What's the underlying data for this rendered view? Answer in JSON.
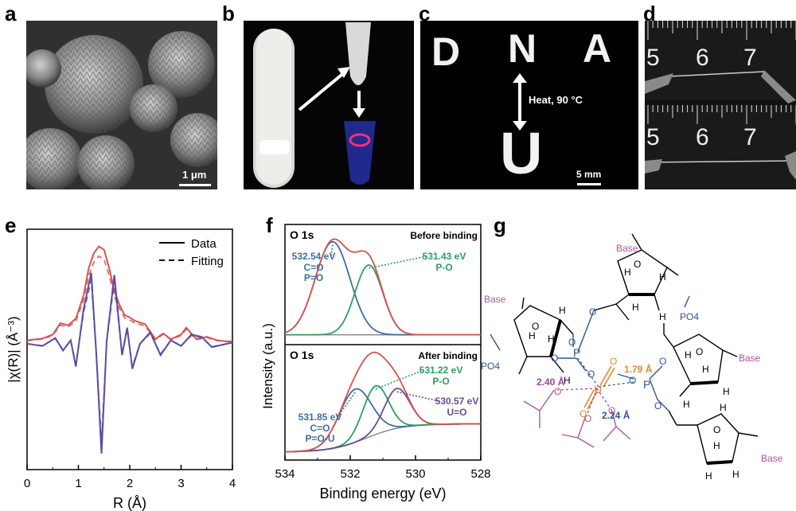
{
  "panels": {
    "a": {
      "label": "a",
      "scalebar": "1 μm"
    },
    "b": {
      "label": "b"
    },
    "c": {
      "label": "c",
      "letters": [
        "D",
        "N",
        "A",
        "U"
      ],
      "heat_label": "Heat, 90 °C",
      "scalebar": "5 mm"
    },
    "d": {
      "label": "d",
      "ruler_numbers": [
        "5",
        "6",
        "7"
      ]
    },
    "e": {
      "label": "e"
    },
    "f": {
      "label": "f"
    },
    "g": {
      "label": "g"
    }
  },
  "chart_data": [
    {
      "type": "line",
      "panel": "e",
      "xlabel": "R (Å)",
      "ylabel": "|χ(R)| (Å⁻³)",
      "xlim": [
        0,
        4
      ],
      "xticks": [
        "0",
        "1",
        "2",
        "3",
        "4"
      ],
      "legend": {
        "placement": "top-right",
        "entries": [
          "Data",
          "Fitting"
        ]
      },
      "series": [
        {
          "name": "Data",
          "kind": "magnitude",
          "color": "#d9534f",
          "x": [
            0,
            0.3,
            0.5,
            0.65,
            0.8,
            0.95,
            1.1,
            1.2,
            1.3,
            1.4,
            1.5,
            1.6,
            1.7,
            1.8,
            1.9,
            2.0,
            2.1,
            2.3,
            2.5,
            2.65,
            2.8,
            3.0,
            3.1,
            3.3,
            3.5,
            3.7,
            3.9,
            4.0
          ],
          "y": [
            0.3,
            0.45,
            0.8,
            1.8,
            1.6,
            2.2,
            4.2,
            6.6,
            7.9,
            8.5,
            8.2,
            6.6,
            4.6,
            3.4,
            2.5,
            2.3,
            2.0,
            1.7,
            0.4,
            0.9,
            0.4,
            0.8,
            1.4,
            0.4,
            0.6,
            0.3,
            0.2,
            0.2
          ]
        },
        {
          "name": "Data",
          "kind": "real",
          "color": "#5b4ea2",
          "x": [
            0,
            0.3,
            0.55,
            0.7,
            0.85,
            0.95,
            1.1,
            1.25,
            1.35,
            1.45,
            1.55,
            1.7,
            1.85,
            1.95,
            2.05,
            2.2,
            2.4,
            2.6,
            2.8,
            3.0,
            3.2,
            3.4,
            3.6,
            4.0
          ],
          "y": [
            0,
            -0.2,
            0.5,
            -0.6,
            0.3,
            -2.0,
            3.0,
            6.2,
            -1.0,
            -9.6,
            0.2,
            6.0,
            -1.0,
            1.4,
            -2.2,
            0.0,
            1.0,
            -1.0,
            0.3,
            -0.2,
            0.8,
            0.6,
            -0.3,
            0.1
          ]
        }
      ],
      "fit_series": {
        "name": "Fitting",
        "style": "dashed"
      }
    },
    {
      "type": "line",
      "panel": "f",
      "xlabel": "Binding energy (eV)",
      "ylabel": "Intensity (a.u.)",
      "xlim": [
        534,
        528
      ],
      "xticks": [
        "534",
        "532",
        "530",
        "528"
      ],
      "subplots": [
        {
          "name": "Before binding",
          "core_level": "O 1s",
          "peaks": [
            {
              "center": 532.54,
              "label": "532.54 eV",
              "assign": [
                "C=O",
                "P=O"
              ],
              "color": "#3b6ea5",
              "height": 1.0,
              "width": 0.75
            },
            {
              "center": 531.43,
              "label": "531.43 eV",
              "assign": [
                "P-O"
              ],
              "color": "#2e9e62",
              "height": 0.75,
              "width": 0.6
            }
          ]
        },
        {
          "name": "After binding",
          "core_level": "O 1s",
          "peaks": [
            {
              "center": 531.85,
              "label": "531.85 eV",
              "assign": [
                "C=O",
                "P=O-U"
              ],
              "color": "#3b6ea5",
              "height": 0.6,
              "width": 0.7
            },
            {
              "center": 531.22,
              "label": "531.22 eV",
              "assign": [
                "P-O"
              ],
              "color": "#2e9e62",
              "height": 0.55,
              "width": 0.55
            },
            {
              "center": 530.57,
              "label": "530.57 eV",
              "assign": [
                "U=O"
              ],
              "color": "#6a4c93",
              "height": 0.45,
              "width": 0.55
            }
          ]
        }
      ]
    }
  ],
  "structure_g": {
    "base_labels": [
      "Base",
      "Base",
      "Base",
      "Base"
    ],
    "po4_labels": [
      "PO4",
      "PO4"
    ],
    "distances": [
      "1.79 Å",
      "2.40 Å",
      "2.24 Å"
    ],
    "atoms": {
      "uranium": "U",
      "phosphorus": "P",
      "oxygen": "O",
      "hydrogen": "H"
    },
    "colors": {
      "uranyl": "#e08a2e",
      "acetate": "#b0559a",
      "phosphate": "#2f5597",
      "distance_purple": "#9b3fa0"
    }
  }
}
